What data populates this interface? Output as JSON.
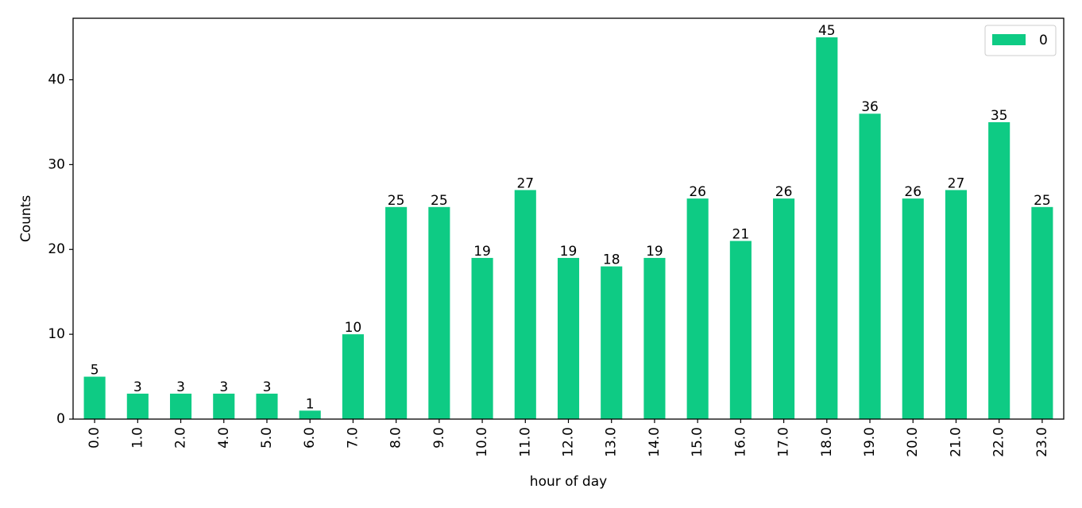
{
  "chart_data": {
    "type": "bar",
    "title": "",
    "xlabel": "hour of day",
    "ylabel": "Counts",
    "ylim": [
      0,
      47.25
    ],
    "yticks": [
      0,
      10,
      20,
      30,
      40
    ],
    "categories": [
      "0.0",
      "1.0",
      "2.0",
      "4.0",
      "5.0",
      "6.0",
      "7.0",
      "8.0",
      "9.0",
      "10.0",
      "11.0",
      "12.0",
      "13.0",
      "14.0",
      "15.0",
      "16.0",
      "17.0",
      "18.0",
      "19.0",
      "20.0",
      "21.0",
      "22.0",
      "23.0"
    ],
    "series": [
      {
        "name": "0",
        "color": "#0ecb84",
        "values": [
          5,
          3,
          3,
          3,
          3,
          1,
          10,
          25,
          25,
          19,
          27,
          19,
          18,
          19,
          26,
          21,
          26,
          45,
          36,
          26,
          27,
          35,
          25
        ]
      }
    ],
    "legend": {
      "placement": "top-right",
      "entries": [
        "0"
      ]
    },
    "grid": false,
    "bar_labels": true
  }
}
